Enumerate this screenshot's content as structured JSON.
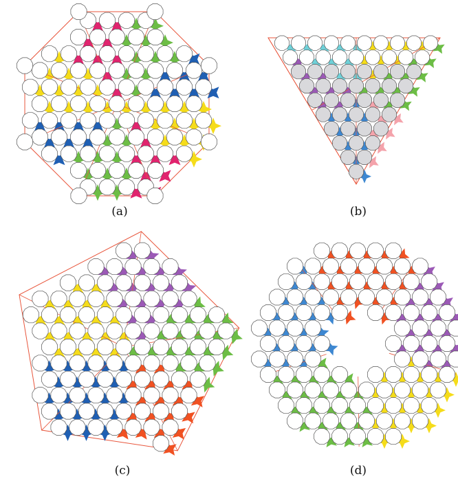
{
  "figure": {
    "panels": [
      {
        "id": "a",
        "label": "(a)",
        "letter": "a",
        "shape": "octagon",
        "colors": [
          "#f5dc1a",
          "#e0246e",
          "#6cbd45",
          "#1f5fb3"
        ]
      },
      {
        "id": "b",
        "label": "(b)",
        "letter": "b",
        "shape": "triangle",
        "colors": [
          "#f5dc1a",
          "#6cbd45",
          "#f4a3ab",
          "#3d87d1",
          "#9b59b6",
          "#6fd0d8"
        ]
      },
      {
        "id": "c",
        "label": "(c)",
        "letter": "c",
        "shape": "pentagon",
        "colors": [
          "#1f5fb3",
          "#f5dc1a",
          "#9b59b6",
          "#6cbd45",
          "#f05122"
        ]
      },
      {
        "id": "d",
        "label": "(d)",
        "letter": "d",
        "shape": "ring",
        "colors": [
          "#f5dc1a",
          "#6cbd45",
          "#3d87d1",
          "#f05122",
          "#9b59b6"
        ]
      }
    ],
    "style": {
      "disk_stroke": "#555555",
      "guide_line": "#e8553b",
      "disk_fill": "#ffffff",
      "disk_gray": "#d9d9dc"
    }
  }
}
